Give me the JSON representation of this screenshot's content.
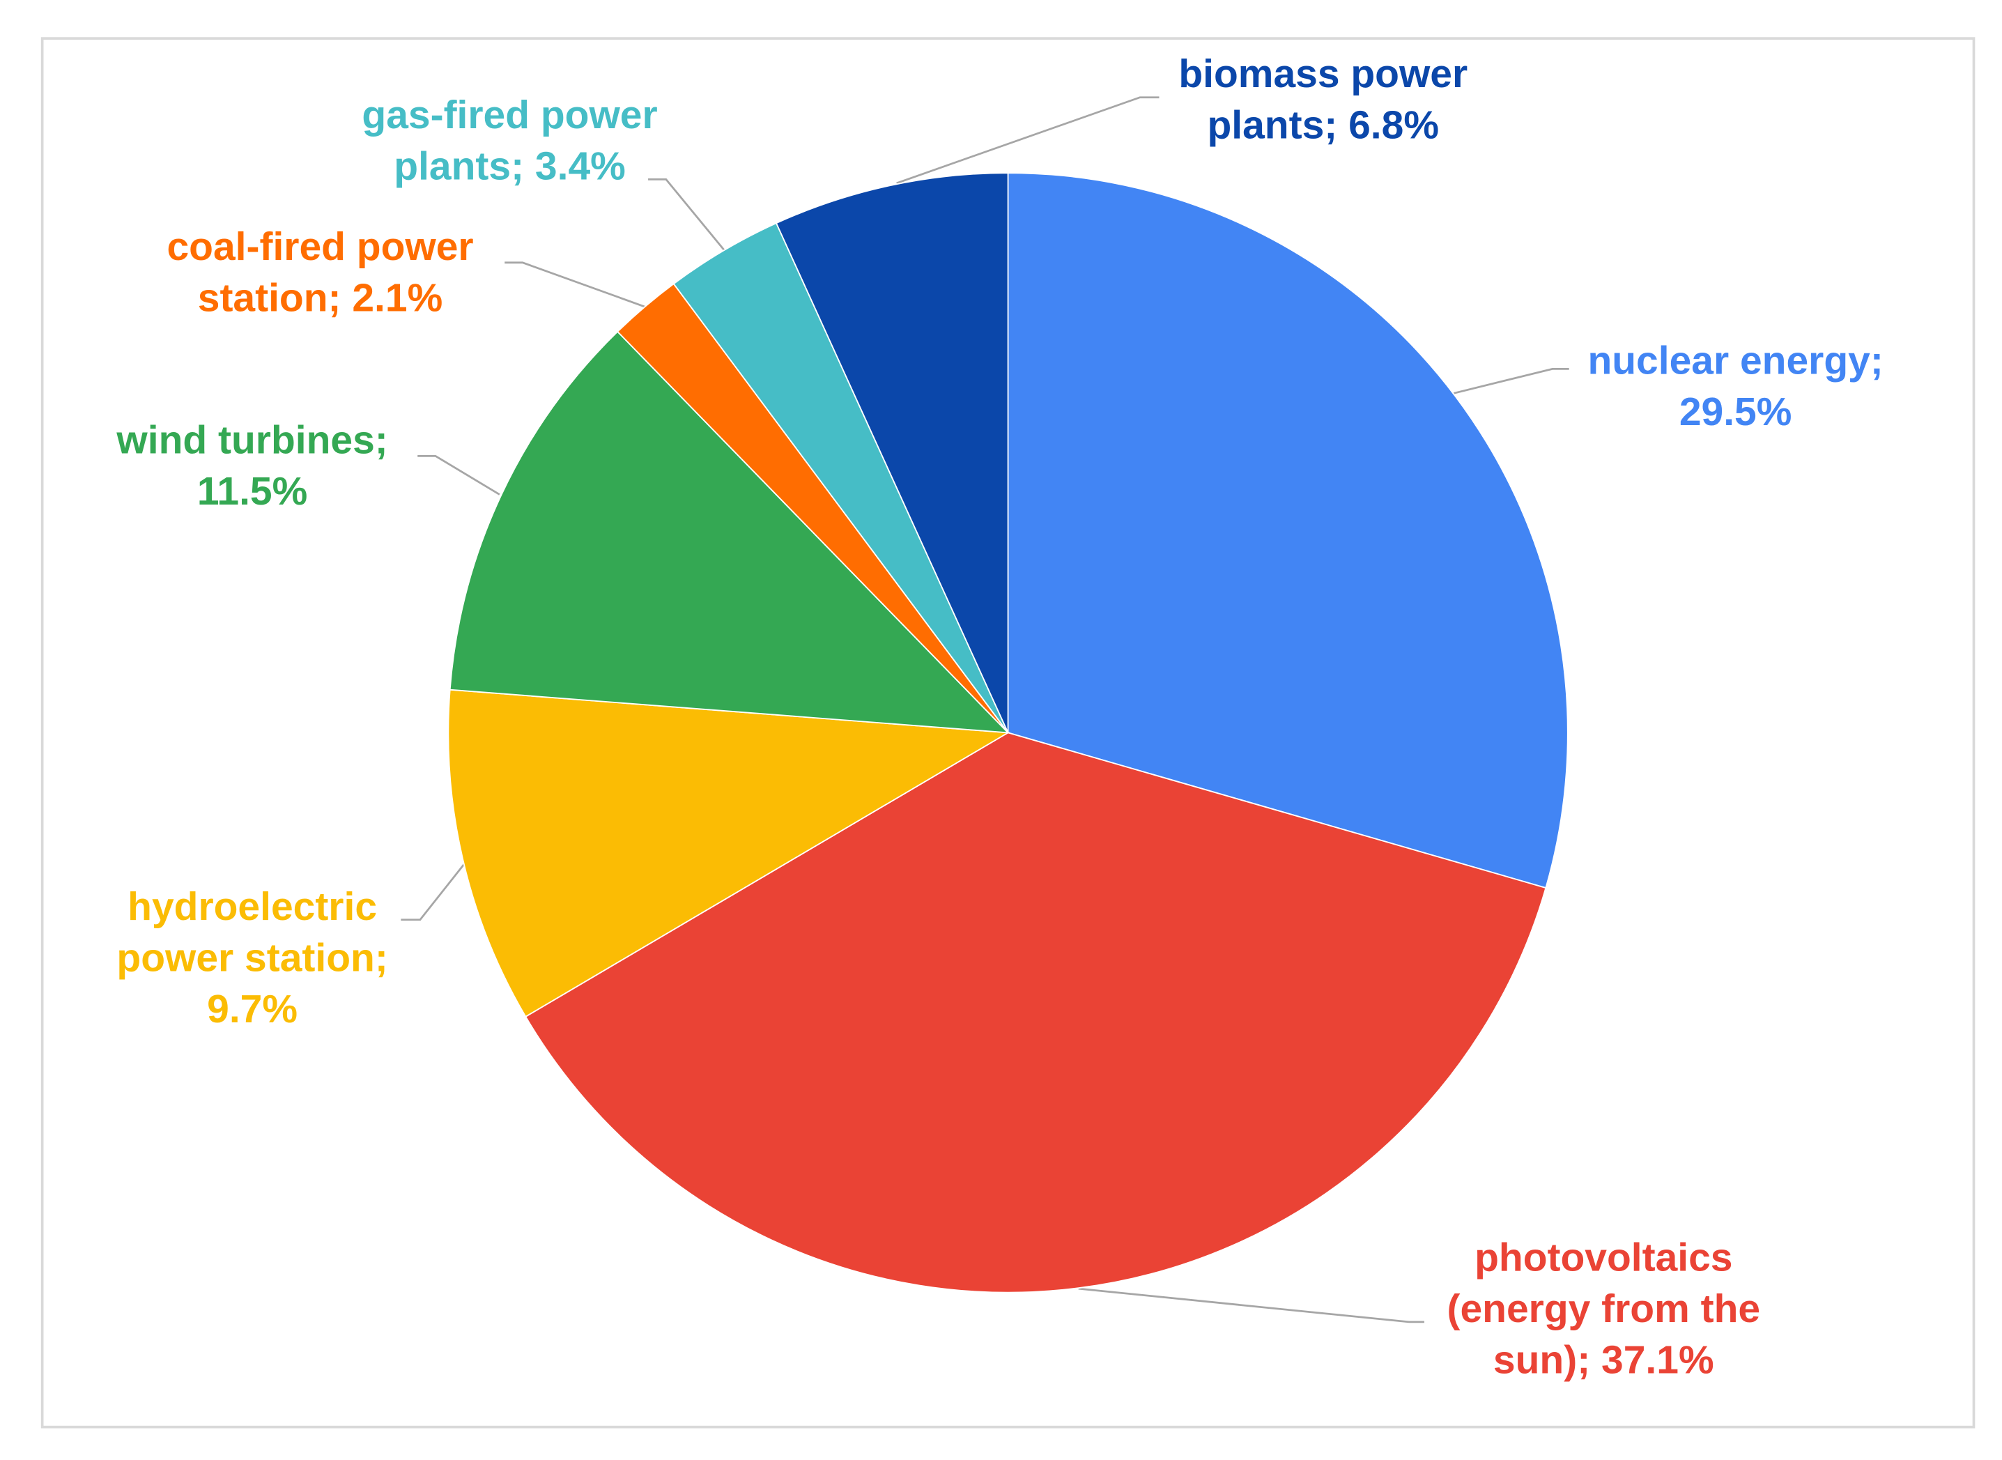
{
  "chart_data": {
    "type": "pie",
    "categories": [
      "nuclear energy;",
      "photovoltaics (energy from the sun);",
      "hydroelectric power station;",
      "wind turbines;",
      "coal-fired power station;",
      "gas-fired power plants;",
      "biomass power plants;"
    ],
    "values": [
      29.5,
      37.1,
      9.7,
      11.5,
      2.1,
      3.4,
      6.8
    ],
    "value_labels": [
      "29.5%",
      "37.1%",
      "9.7%",
      "11.5%",
      "2.1%",
      "3.4%",
      "6.8%"
    ],
    "colors": [
      "#4285f4",
      "#ea4335",
      "#fbbc04",
      "#34a853",
      "#ff6d01",
      "#46bdc6",
      "#0b47aa"
    ],
    "start_angle": 0,
    "direction": "clockwise"
  }
}
